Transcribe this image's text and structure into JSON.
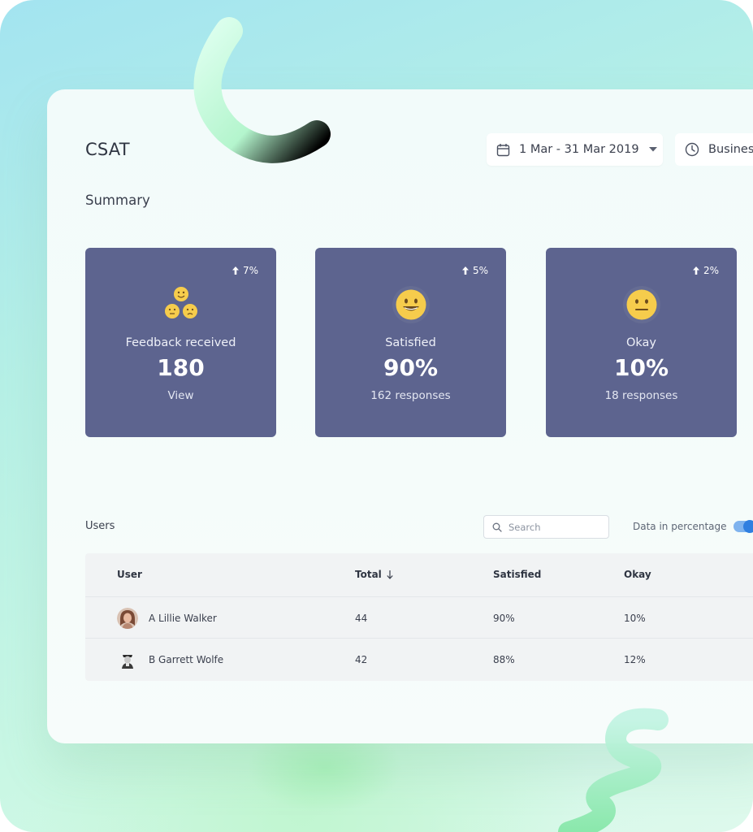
{
  "header": {
    "title": "CSAT",
    "date_range": "1 Mar - 31 Mar 2019",
    "hours": "Business hours"
  },
  "summary": {
    "title": "Summary",
    "cards": [
      {
        "trend": "7%",
        "label": "Feedback received",
        "value": "180",
        "sub": "View",
        "icon": "faces-group-icon"
      },
      {
        "trend": "5%",
        "label": "Satisfied",
        "value": "90%",
        "sub": "162 responses",
        "icon": "smile-face-icon"
      },
      {
        "trend": "2%",
        "label": "Okay",
        "value": "10%",
        "sub": "18 responses",
        "icon": "neutral-face-icon"
      }
    ]
  },
  "users": {
    "title": "Users",
    "search_placeholder": "Search",
    "percentage_label": "Data in percentage",
    "percentage_enabled": true,
    "columns": {
      "user": "User",
      "total": "Total",
      "satisfied": "Satisfied",
      "okay": "Okay"
    },
    "rows": [
      {
        "name": "A Lillie Walker",
        "total": "44",
        "satisfied": "90%",
        "okay": "10%"
      },
      {
        "name": "B Garrett Wolfe",
        "total": "42",
        "satisfied": "88%",
        "okay": "12%"
      }
    ]
  },
  "colors": {
    "card": "#5d648f",
    "emoji": "#f6cc4c",
    "toggle": "#2f7fe0"
  }
}
